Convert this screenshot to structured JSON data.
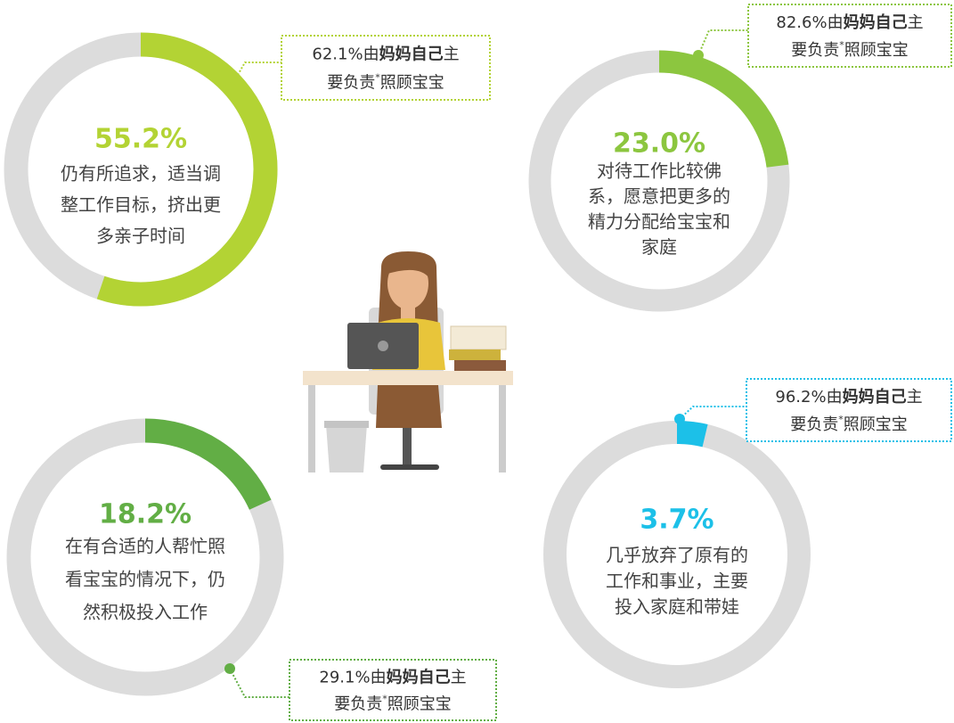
{
  "chart_data": [
    {
      "type": "donut",
      "values": [
        55.2
      ],
      "value_labels": [
        "55.2%"
      ],
      "color": "#b3d334",
      "description": [
        "仍有所追求，适当调",
        "整工作目标，挤出更",
        "多亲子时间"
      ],
      "annotation": [
        "62.1%由",
        "妈妈自己",
        "主",
        "要负责",
        "*",
        "照顾宝宝"
      ]
    },
    {
      "type": "donut",
      "values": [
        23.0
      ],
      "value_labels": [
        "23.0%"
      ],
      "color": "#8cc63f",
      "description": [
        "对待工作比较佛",
        "系，愿意把更多的",
        "精力分配给宝宝和",
        "家庭"
      ],
      "annotation": [
        "82.6%由",
        "妈妈自己",
        "主",
        "要负责",
        "*",
        "照顾宝宝"
      ]
    },
    {
      "type": "donut",
      "values": [
        18.2
      ],
      "value_labels": [
        "18.2%"
      ],
      "color": "#62ae45",
      "description": [
        "在有合适的人帮忙照",
        "看宝宝的情况下，仍",
        "然积极投入工作"
      ],
      "annotation": [
        "29.1%由",
        "妈妈自己",
        "主",
        "要负责",
        "*",
        "照顾宝宝"
      ]
    },
    {
      "type": "donut",
      "values": [
        3.7
      ],
      "value_labels": [
        "3.7%"
      ],
      "color": "#1cc0e8",
      "description": [
        "几乎放弃了原有的",
        "工作和事业，主要",
        "投入家庭和带娃"
      ],
      "annotation": [
        "96.2%由",
        "妈妈自己",
        "主",
        "要负责",
        "*",
        "照顾宝宝"
      ]
    }
  ]
}
